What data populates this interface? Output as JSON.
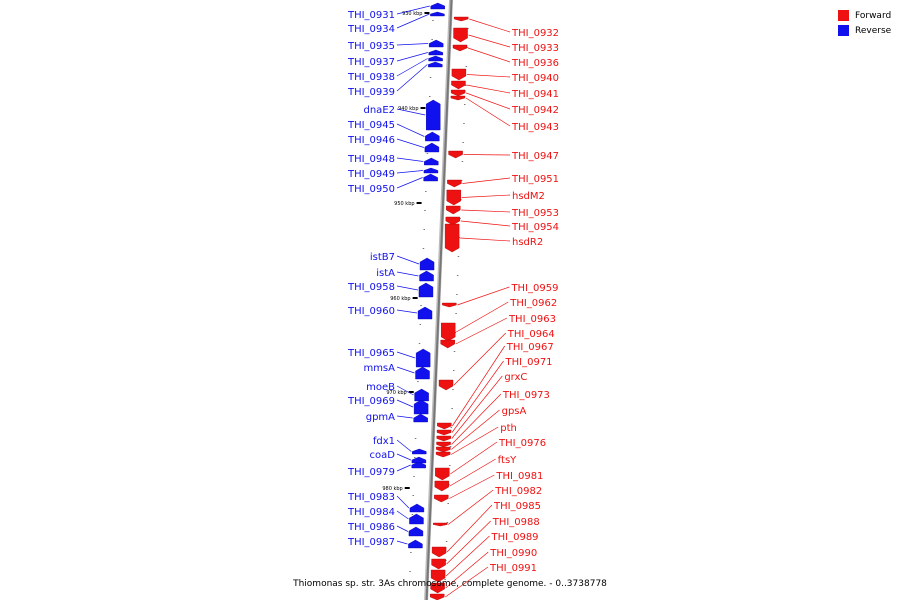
{
  "caption": "Thiomonas sp. str. 3As chromosome, complete genome. - 0..3738778",
  "legend": [
    {
      "label": "Forward",
      "color": "#ee1111"
    },
    {
      "label": "Reverse",
      "color": "#1111ee"
    }
  ],
  "colors": {
    "forward": "#ee1111",
    "reverse": "#1111ee",
    "axis": "#777777"
  },
  "ticks": [
    "930 kbp",
    "940 kbp",
    "950 kbp",
    "960 kbp",
    "970 kbp",
    "980 kbp"
  ],
  "reverse_genes": [
    "THI_0931",
    "THI_0934",
    "THI_0935",
    "THI_0937",
    "THI_0938",
    "THI_0939",
    "dnaE2",
    "THI_0945",
    "THI_0946",
    "THI_0948",
    "THI_0949",
    "THI_0950",
    "istB7",
    "istA",
    "THI_0958",
    "THI_0960",
    "THI_0965",
    "mmsA",
    "moeB",
    "THI_0969",
    "gpmA",
    "fdx1",
    "coaD",
    "THI_0979",
    "THI_0983",
    "THI_0984",
    "THI_0986",
    "THI_0987"
  ],
  "forward_genes": [
    "THI_0932",
    "THI_0933",
    "THI_0936",
    "THI_0940",
    "THI_0941",
    "THI_0942",
    "THI_0943",
    "THI_0947",
    "THI_0951",
    "hsdM2",
    "THI_0953",
    "THI_0954",
    "hsdR2",
    "THI_0959",
    "THI_0962",
    "THI_0963",
    "THI_0964",
    "THI_0967",
    "THI_0971",
    "grxC",
    "THI_0973",
    "gpsA",
    "pth",
    "THI_0976",
    "ftsY",
    "THI_0981",
    "THI_0982",
    "THI_0985",
    "THI_0988",
    "THI_0989",
    "THI_0990",
    "THI_0991"
  ]
}
